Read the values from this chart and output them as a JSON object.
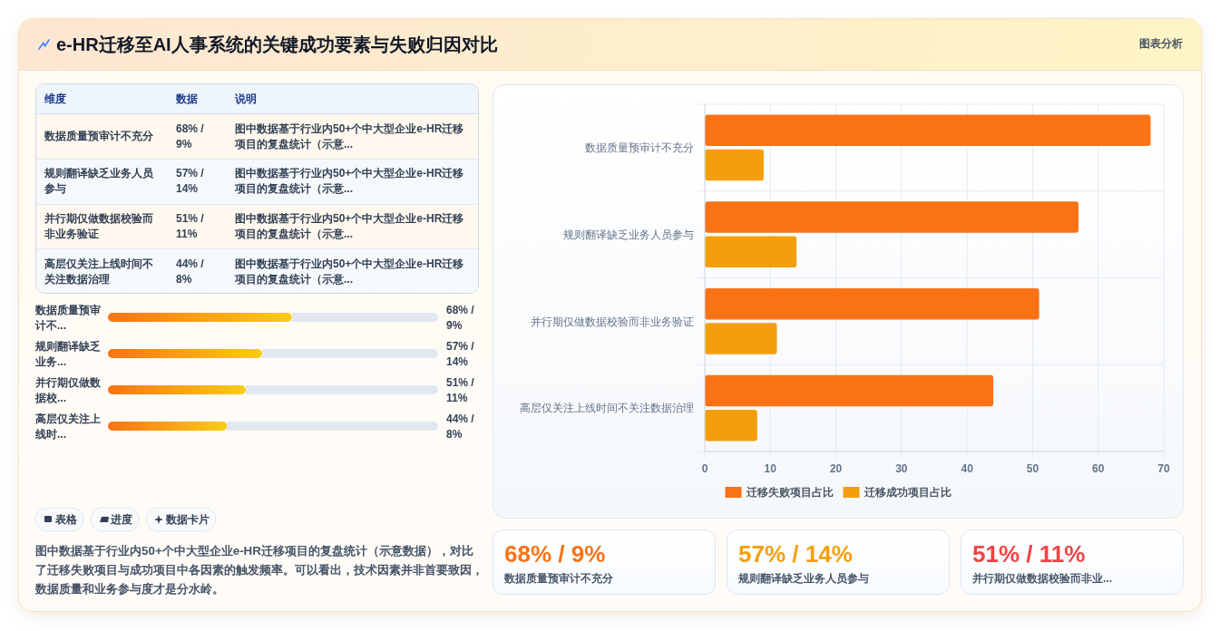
{
  "chart_data": [
    {
      "type": "other",
      "title": "e-HR迁移至AI人事系统的关键成功要素与失败归因对比",
      "categories": [
        "数据质量预审计不充分",
        "规则翻译缺乏业务人员参与",
        "并行期仅做数据校验而非业务验证",
        "高层仅关注上线时间不关注数据治理"
      ],
      "value_labels": [
        "68% / 9%",
        "57% / 14%",
        "51% / 11%",
        "44% / 8%"
      ],
      "annotations": [
        "维度",
        "数据",
        "说明",
        "图中数据基于行业内50+个中大型企业e-HR迁移项目的复盘统计（示意...",
        "图中数据基于行业内50+个中大型企业e-HR迁移项目的复盘统计（示意...",
        "图中数据基于行业内50+个中大型企业e-HR迁移项目的复盘统计（示意...",
        "图中数据基于行业内50+个中大型企业e-HR迁移项目的复盘统计（示意..."
      ]
    },
    {
      "type": "bar",
      "orientation": "horizontal",
      "categories": [
        "数据质量预审计不...",
        "规则翻译缺乏业务...",
        "并行期仅做数据校...",
        "高层仅关注上线时..."
      ],
      "values": [
        68,
        57,
        51,
        44
      ],
      "value_labels": [
        "68% / 9%",
        "57% / 14%",
        "51% / 11%",
        "44% / 8%"
      ],
      "color": "#f97316",
      "annotations": [
        "表格",
        "进度",
        "数据卡片",
        "图中数据基于行业内50+个中大型企业e-HR迁移项目的复盘统计（示意数据），对比了迁移失败项目与成功项目中各因素的触发频率。可以看出，技术因素并非首要致因，数据质量和业务参与度才是分水岭。"
      ]
    },
    {
      "type": "bar",
      "orientation": "horizontal",
      "subtitle": "图表分析",
      "categories": [
        "数据质量预审计不充分",
        "规则翻译缺乏业务人员参与",
        "并行期仅做数据校验而非业务验证",
        "高层仅关注上线时间不关注数据治理"
      ],
      "series": [
        {
          "name": "迁移失败项目占比",
          "color": "#f97316",
          "values": [
            68,
            57,
            51,
            44
          ]
        },
        {
          "name": "迁移成功项目占比",
          "color": "#f59e0b",
          "values": [
            9,
            14,
            11,
            8
          ]
        }
      ],
      "xlim": [
        0,
        70
      ],
      "xticks": [
        0,
        10,
        20,
        30,
        40,
        50,
        60,
        70
      ],
      "grid": true,
      "legend": "bottom"
    },
    {
      "type": "other",
      "categories": [
        "数据质量预审计不充分",
        "规则翻译缺乏业务人员参与",
        "并行期仅做数据校验而非业..."
      ],
      "value_labels": [
        "68% / 9%",
        "57% / 14%",
        "51% / 11%"
      ]
    }
  ]
}
